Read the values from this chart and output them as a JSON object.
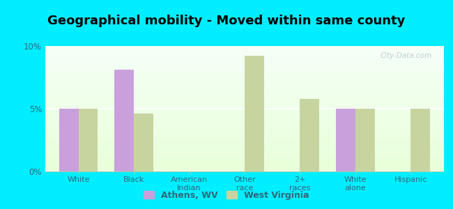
{
  "title": "Geographical mobility - Moved within same county",
  "categories": [
    "White",
    "Black",
    "American\nIndian",
    "Other\nrace",
    "2+\nraces",
    "White\nalone",
    "Hispanic"
  ],
  "athens_values": [
    5.0,
    8.1,
    0.0,
    0.0,
    0.0,
    5.0,
    0.0
  ],
  "wv_values": [
    5.0,
    4.6,
    0.0,
    9.2,
    5.8,
    5.0,
    5.0
  ],
  "athens_color": "#c9a0dc",
  "wv_color": "#c8d4a0",
  "background_color": "#00eeff",
  "ylim": [
    0,
    10
  ],
  "yticks": [
    0,
    5,
    10
  ],
  "ytick_labels": [
    "0%",
    "5%",
    "10%"
  ],
  "legend_athens": "Athens, WV",
  "legend_wv": "West Virginia",
  "bar_width": 0.35,
  "title_fontsize": 13,
  "watermark": "City-Data.com"
}
